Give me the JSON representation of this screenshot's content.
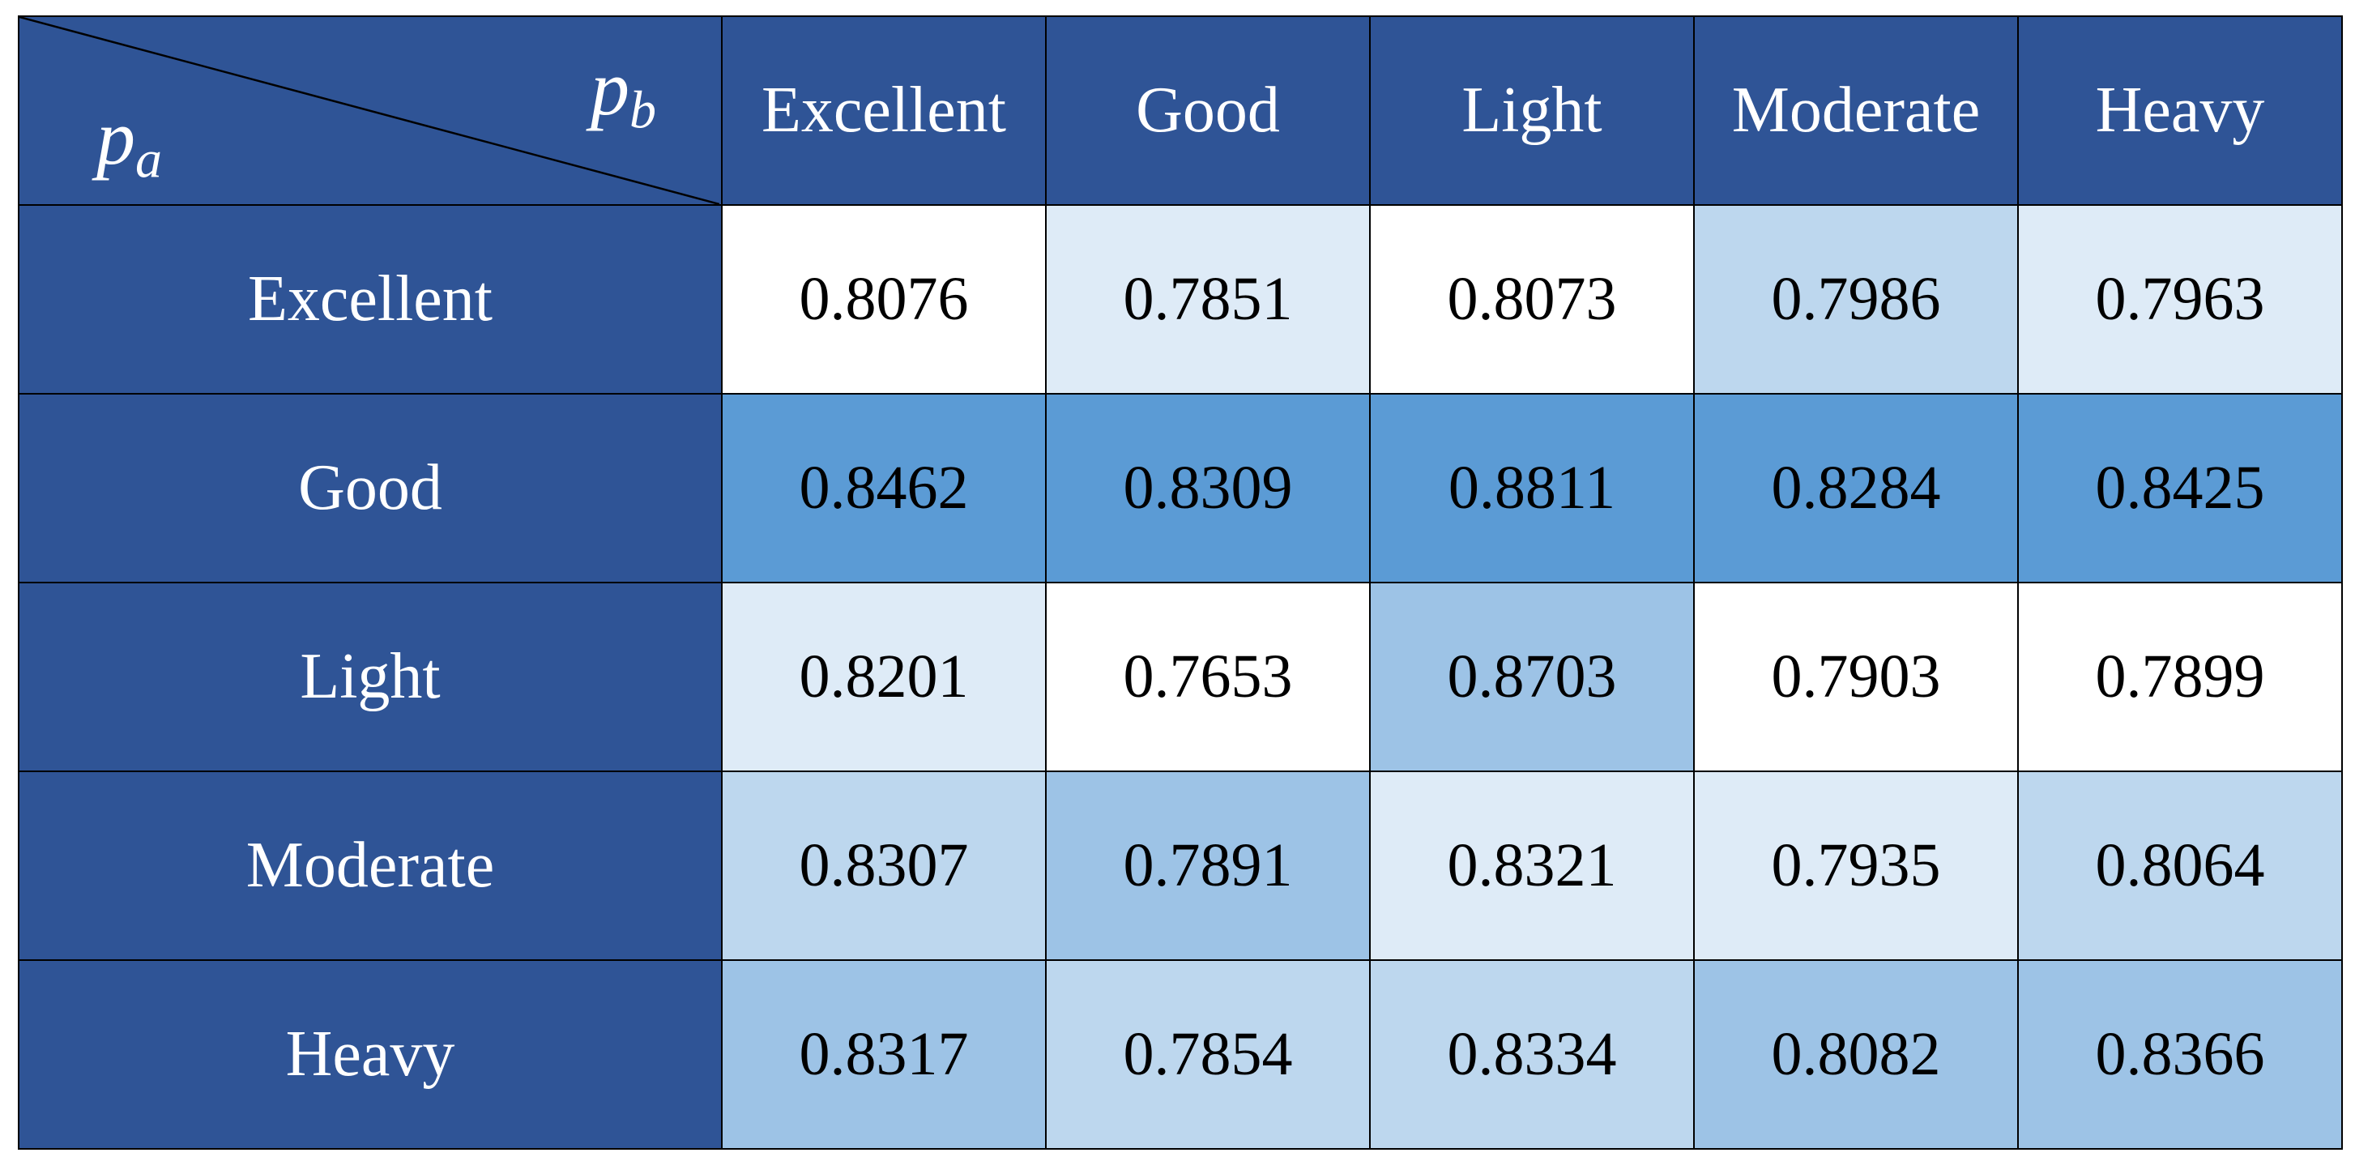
{
  "corner": {
    "row_var": {
      "base": "p",
      "sub": "a"
    },
    "column_var": {
      "base": "p",
      "sub": "b"
    }
  },
  "header_color": "#2f5496",
  "table": {
    "columns": [
      "Excellent",
      "Good",
      "Light",
      "Moderate",
      "Heavy"
    ],
    "rows": [
      {
        "label": "Excellent",
        "values": [
          0.8076,
          0.7851,
          0.8073,
          0.7986,
          0.7963
        ],
        "colors": [
          "#ffffff",
          "#deebf7",
          "#ffffff",
          "#bdd7ee",
          "#deebf7"
        ]
      },
      {
        "label": "Good",
        "values": [
          0.8462,
          0.8309,
          0.8811,
          0.8284,
          0.8425
        ],
        "colors": [
          "#5b9bd5",
          "#5b9bd5",
          "#5b9bd5",
          "#5b9bd5",
          "#5b9bd5"
        ]
      },
      {
        "label": "Light",
        "values": [
          0.8201,
          0.7653,
          0.8703,
          0.7903,
          0.7899
        ],
        "colors": [
          "#deebf7",
          "#ffffff",
          "#9dc3e6",
          "#ffffff",
          "#ffffff"
        ]
      },
      {
        "label": "Moderate",
        "values": [
          0.8307,
          0.7891,
          0.8321,
          0.7935,
          0.8064
        ],
        "colors": [
          "#bdd7ee",
          "#9dc3e6",
          "#deebf7",
          "#deebf7",
          "#bdd7ee"
        ]
      },
      {
        "label": "Heavy",
        "values": [
          0.8317,
          0.7854,
          0.8334,
          0.8082,
          0.8366
        ],
        "colors": [
          "#9dc3e6",
          "#bdd7ee",
          "#bdd7ee",
          "#9dc3e6",
          "#9dc3e6"
        ]
      }
    ]
  }
}
